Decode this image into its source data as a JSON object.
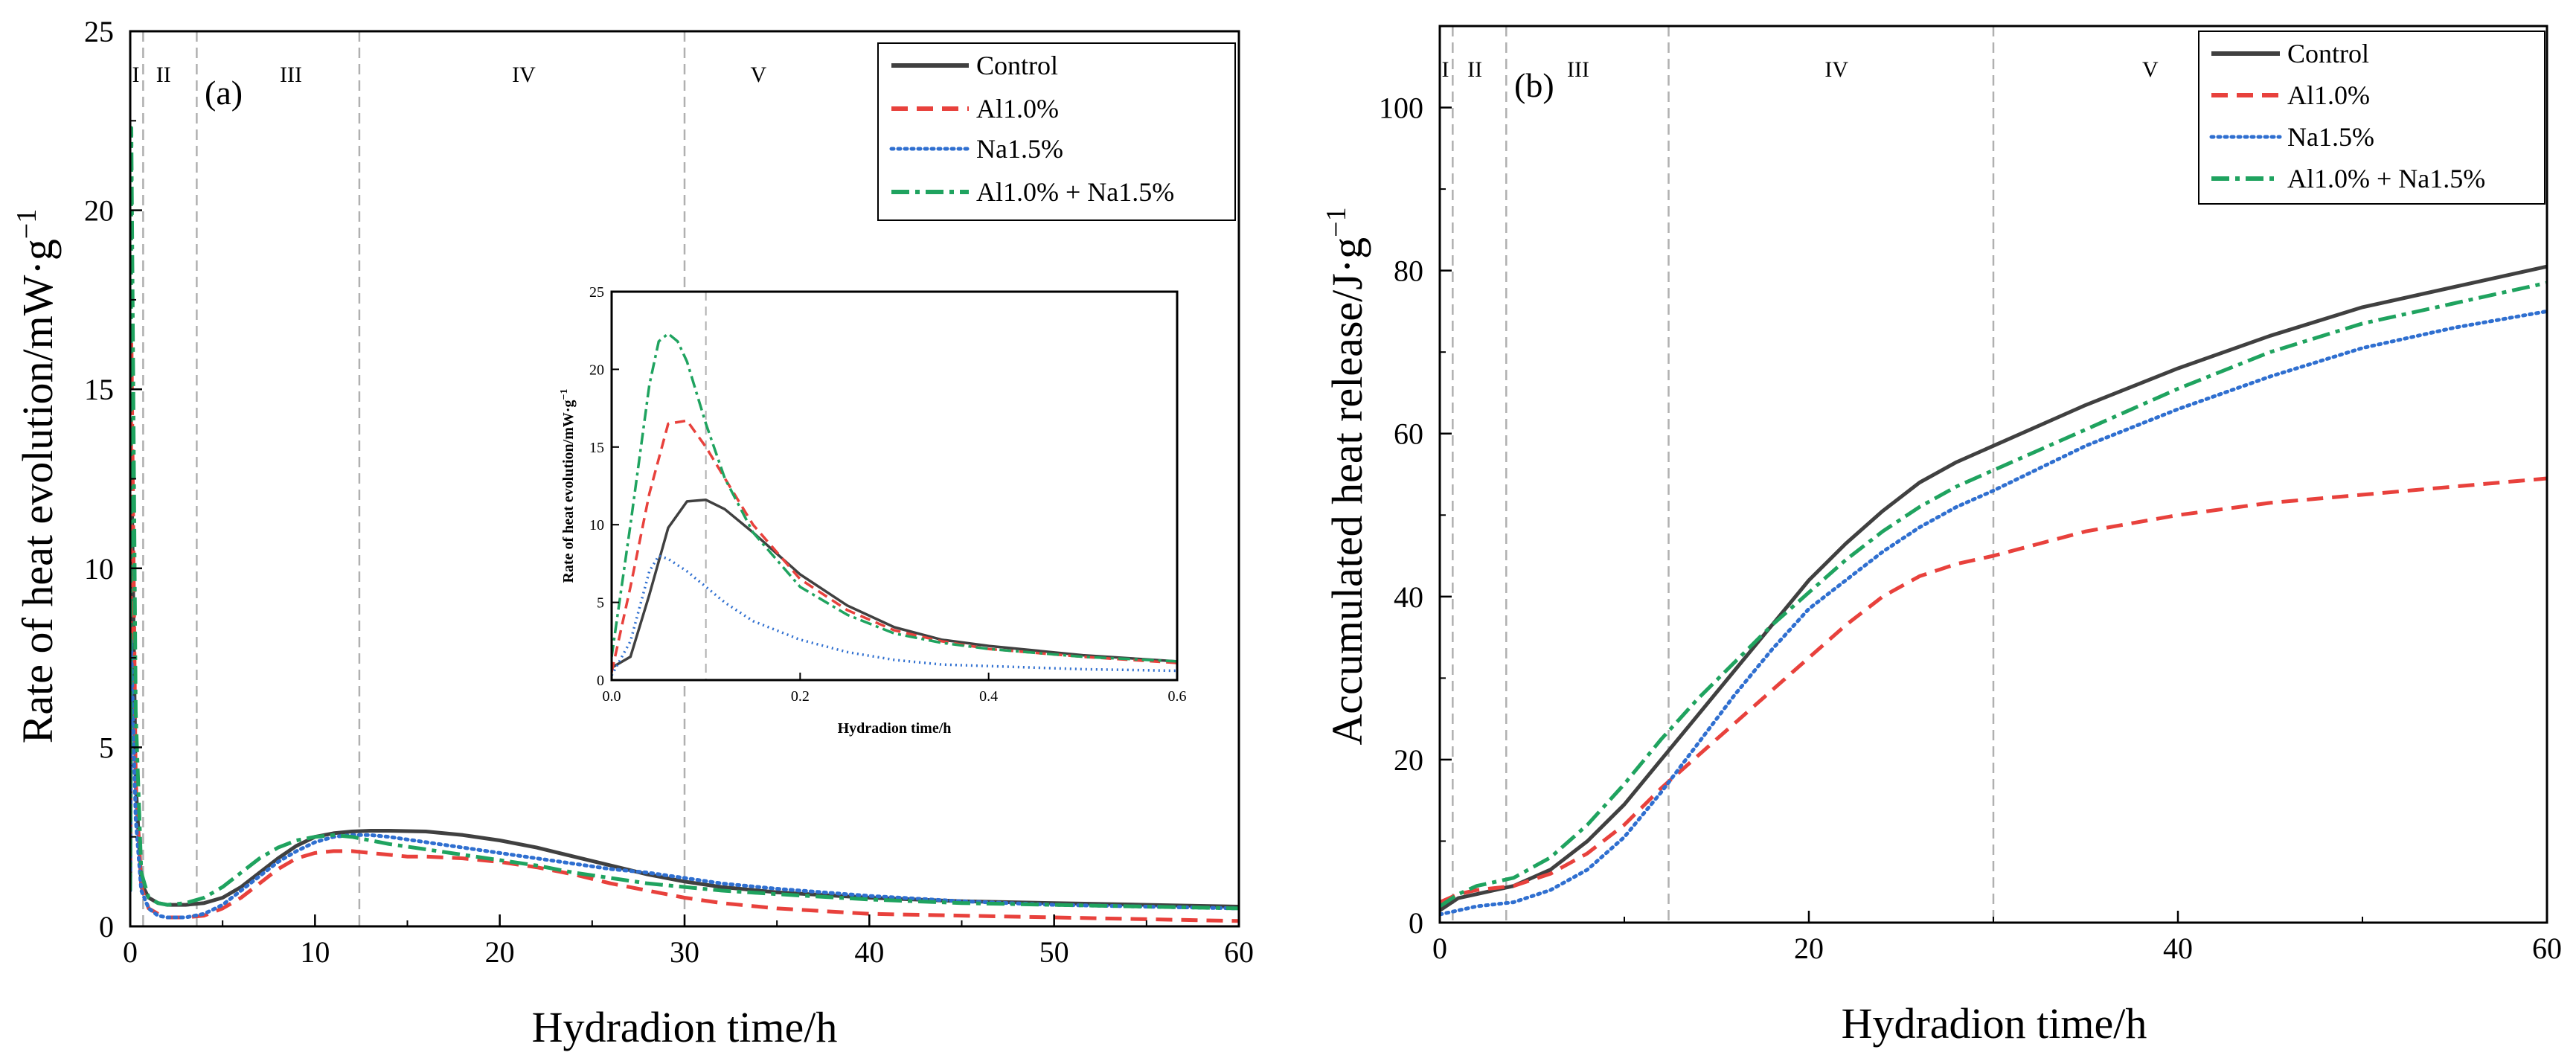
{
  "chart_data": [
    {
      "type": "line",
      "panel_label": "(a)",
      "xlabel": "Hydradion time/h",
      "ylabel": "Rate of heat evolution/mW·g",
      "ylabel_sup": "−1",
      "xlim": [
        0,
        60
      ],
      "ylim": [
        0,
        25
      ],
      "xticks": [
        "0",
        "10",
        "20",
        "30",
        "40",
        "50",
        "60"
      ],
      "yticks": [
        "0",
        "5",
        "10",
        "15",
        "20",
        "25"
      ],
      "stage_boundaries": [
        0.7,
        3.6,
        12.4,
        30
      ],
      "stages": [
        {
          "label": "I",
          "x": 0.3
        },
        {
          "label": "II",
          "x": 1.8
        },
        {
          "label": "III",
          "x": 8.7
        },
        {
          "label": "IV",
          "x": 21.3
        },
        {
          "label": "V",
          "x": 34
        }
      ],
      "legend_position": "top-right",
      "series": [
        {
          "name": "Control",
          "color": "#404040",
          "dash": "solid",
          "x": [
            0,
            0.1,
            0.3,
            0.6,
            1,
            1.5,
            2,
            3,
            4,
            5,
            6,
            7,
            8,
            9,
            10,
            11,
            12,
            13,
            14,
            15,
            16,
            17,
            18,
            20,
            22,
            24,
            26,
            28,
            30,
            32,
            35,
            40,
            45,
            50,
            55,
            60
          ],
          "y": [
            1.0,
            11.6,
            4.0,
            1.2,
            0.8,
            0.65,
            0.6,
            0.6,
            0.65,
            0.8,
            1.1,
            1.5,
            1.9,
            2.25,
            2.5,
            2.6,
            2.65,
            2.67,
            2.67,
            2.66,
            2.65,
            2.6,
            2.55,
            2.4,
            2.2,
            1.95,
            1.7,
            1.45,
            1.25,
            1.1,
            0.95,
            0.8,
            0.7,
            0.65,
            0.6,
            0.55
          ]
        },
        {
          "name": "Al1.0%",
          "color": "#e8413c",
          "dash": "long-dash",
          "x": [
            0,
            0.06,
            0.3,
            0.6,
            1,
            1.5,
            2,
            3,
            4,
            5,
            6,
            7,
            8,
            9,
            10,
            11,
            12,
            13,
            14,
            15,
            16,
            18,
            20,
            22,
            24,
            26,
            28,
            30,
            32,
            35,
            40,
            45,
            50,
            55,
            60
          ],
          "y": [
            1.0,
            16.7,
            4.0,
            1.1,
            0.5,
            0.35,
            0.25,
            0.25,
            0.3,
            0.5,
            0.8,
            1.2,
            1.6,
            1.9,
            2.05,
            2.1,
            2.1,
            2.05,
            2.0,
            1.95,
            1.95,
            1.9,
            1.8,
            1.65,
            1.45,
            1.2,
            1.0,
            0.8,
            0.65,
            0.5,
            0.35,
            0.3,
            0.25,
            0.2,
            0.15
          ]
        },
        {
          "name": "Na1.5%",
          "color": "#2f6fd0",
          "dash": "dotted",
          "x": [
            0,
            0.05,
            0.3,
            0.6,
            1,
            1.5,
            2,
            3,
            4,
            5,
            6,
            7,
            8,
            9,
            10,
            11,
            12,
            13,
            14,
            16,
            18,
            20,
            22,
            24,
            26,
            28,
            30,
            32,
            35,
            40,
            45,
            50,
            55,
            60
          ],
          "y": [
            1.0,
            8.0,
            3.0,
            1.0,
            0.5,
            0.3,
            0.25,
            0.25,
            0.35,
            0.6,
            1.0,
            1.4,
            1.8,
            2.1,
            2.35,
            2.5,
            2.55,
            2.55,
            2.5,
            2.35,
            2.2,
            2.05,
            1.9,
            1.75,
            1.6,
            1.5,
            1.35,
            1.2,
            1.05,
            0.85,
            0.7,
            0.6,
            0.55,
            0.5
          ]
        },
        {
          "name": "Al1.0% + Na1.5%",
          "color": "#1fa35f",
          "dash": "dash-dot",
          "x": [
            0,
            0.06,
            0.3,
            0.6,
            1,
            1.5,
            2,
            3,
            4,
            5,
            6,
            7,
            8,
            9,
            10,
            11,
            12,
            13,
            14,
            16,
            18,
            20,
            22,
            24,
            26,
            28,
            30,
            32,
            35,
            40,
            45,
            50,
            55,
            60
          ],
          "y": [
            1.0,
            22.3,
            6.0,
            1.5,
            0.8,
            0.65,
            0.6,
            0.65,
            0.8,
            1.1,
            1.5,
            1.9,
            2.2,
            2.4,
            2.5,
            2.55,
            2.5,
            2.4,
            2.3,
            2.15,
            2.0,
            1.85,
            1.7,
            1.5,
            1.35,
            1.2,
            1.1,
            1.0,
            0.9,
            0.75,
            0.65,
            0.6,
            0.55,
            0.5
          ]
        }
      ],
      "inset": {
        "xlabel": "Hydradion time/h",
        "ylabel": "Rate of heat evolution/mW·g",
        "ylabel_sup": "−1",
        "xlim": [
          0,
          0.6
        ],
        "ylim": [
          0,
          25
        ],
        "xticks": [
          "0.0",
          "0.2",
          "0.4",
          "0.6"
        ],
        "yticks": [
          "0",
          "5",
          "10",
          "15",
          "20",
          "25"
        ],
        "series": [
          {
            "name": "Control",
            "x": [
              0,
              0.02,
              0.04,
              0.06,
              0.08,
              0.1,
              0.12,
              0.15,
              0.2,
              0.25,
              0.3,
              0.35,
              0.4,
              0.5,
              0.6
            ],
            "y": [
              0.8,
              1.5,
              5.5,
              9.8,
              11.5,
              11.6,
              11.0,
              9.5,
              6.8,
              4.8,
              3.4,
              2.6,
              2.2,
              1.6,
              1.2
            ]
          },
          {
            "name": "Al1.0%",
            "x": [
              0,
              0.02,
              0.04,
              0.06,
              0.08,
              0.1,
              0.12,
              0.15,
              0.2,
              0.25,
              0.3,
              0.35,
              0.4,
              0.5,
              0.6
            ],
            "y": [
              0.5,
              6.0,
              12.0,
              16.5,
              16.7,
              15.0,
              13.0,
              10.0,
              6.5,
              4.5,
              3.2,
              2.5,
              2.0,
              1.5,
              1.1
            ]
          },
          {
            "name": "Na1.5%",
            "x": [
              0,
              0.02,
              0.04,
              0.05,
              0.06,
              0.08,
              0.1,
              0.12,
              0.15,
              0.2,
              0.25,
              0.3,
              0.35,
              0.4,
              0.5,
              0.6
            ],
            "y": [
              0.3,
              2.5,
              7.0,
              8.0,
              7.8,
              7.0,
              6.0,
              5.0,
              3.8,
              2.6,
              1.8,
              1.3,
              1.0,
              0.9,
              0.7,
              0.6
            ]
          },
          {
            "name": "Al1.0% + Na1.5%",
            "x": [
              0,
              0.02,
              0.04,
              0.05,
              0.06,
              0.07,
              0.08,
              0.1,
              0.12,
              0.15,
              0.2,
              0.25,
              0.3,
              0.35,
              0.4,
              0.5,
              0.6
            ],
            "y": [
              1.5,
              10.0,
              19.0,
              21.8,
              22.3,
              21.8,
              20.5,
              16.5,
              13.0,
              9.5,
              6.0,
              4.2,
              3.0,
              2.4,
              2.0,
              1.5,
              1.2
            ]
          }
        ]
      }
    },
    {
      "type": "line",
      "panel_label": "(b)",
      "xlabel": "Hydradion time/h",
      "ylabel": "Accumulated heat release/J·g",
      "ylabel_sup": "−1",
      "xlim": [
        0,
        60
      ],
      "ylim": [
        0,
        110
      ],
      "xticks": [
        "0",
        "20",
        "40",
        "60"
      ],
      "yticks": [
        "0",
        "20",
        "40",
        "60",
        "80",
        "100"
      ],
      "stage_boundaries": [
        0.7,
        3.6,
        12.4,
        30
      ],
      "stages": [
        {
          "label": "I",
          "x": 0.3
        },
        {
          "label": "II",
          "x": 1.9
        },
        {
          "label": "III",
          "x": 7.5
        },
        {
          "label": "IV",
          "x": 21.5
        },
        {
          "label": "V",
          "x": 38.5
        }
      ],
      "legend_position": "top-right",
      "series": [
        {
          "name": "Control",
          "color": "#404040",
          "dash": "solid",
          "x": [
            0,
            1,
            2,
            4,
            6,
            8,
            10,
            12,
            14,
            16,
            18,
            20,
            22,
            24,
            26,
            28,
            30,
            35,
            40,
            45,
            50,
            55,
            60
          ],
          "y": [
            1.5,
            3.0,
            3.5,
            4.5,
            6.5,
            10.0,
            14.5,
            20.0,
            25.5,
            31.0,
            36.5,
            42.0,
            46.5,
            50.5,
            54.0,
            56.5,
            58.5,
            63.5,
            68.0,
            72.0,
            75.5,
            78.0,
            80.5
          ]
        },
        {
          "name": "Al1.0%",
          "color": "#e8413c",
          "dash": "long-dash",
          "x": [
            0,
            1,
            2,
            4,
            6,
            8,
            10,
            12,
            14,
            16,
            18,
            20,
            22,
            24,
            26,
            28,
            30,
            35,
            40,
            45,
            50,
            55,
            60
          ],
          "y": [
            2.5,
            3.5,
            4.0,
            4.5,
            6.0,
            8.5,
            12.0,
            16.5,
            20.5,
            24.5,
            28.5,
            32.5,
            36.5,
            40.0,
            42.5,
            44.0,
            45.0,
            48.0,
            50.0,
            51.5,
            52.5,
            53.5,
            54.5
          ]
        },
        {
          "name": "Na1.5%",
          "color": "#2f6fd0",
          "dash": "dotted",
          "x": [
            0,
            1,
            2,
            4,
            6,
            8,
            10,
            12,
            14,
            16,
            18,
            20,
            22,
            24,
            26,
            28,
            30,
            35,
            40,
            45,
            50,
            55,
            60
          ],
          "y": [
            1.0,
            1.5,
            2.0,
            2.5,
            4.0,
            6.5,
            10.5,
            16.0,
            22.0,
            28.0,
            33.5,
            38.5,
            42.0,
            45.5,
            48.5,
            51.0,
            53.0,
            58.5,
            63.0,
            67.0,
            70.5,
            73.0,
            75.0
          ]
        },
        {
          "name": "Al1.0% + Na1.5%",
          "color": "#1fa35f",
          "dash": "dash-dot",
          "x": [
            0,
            1,
            2,
            4,
            6,
            8,
            10,
            12,
            14,
            16,
            18,
            20,
            22,
            24,
            26,
            28,
            30,
            35,
            40,
            45,
            50,
            55,
            60
          ],
          "y": [
            2.0,
            3.5,
            4.5,
            5.5,
            8.0,
            12.0,
            17.0,
            22.5,
            27.5,
            32.0,
            36.5,
            40.5,
            44.5,
            48.0,
            51.0,
            53.5,
            55.5,
            60.5,
            65.5,
            70.0,
            73.5,
            76.0,
            78.5
          ]
        }
      ]
    }
  ]
}
